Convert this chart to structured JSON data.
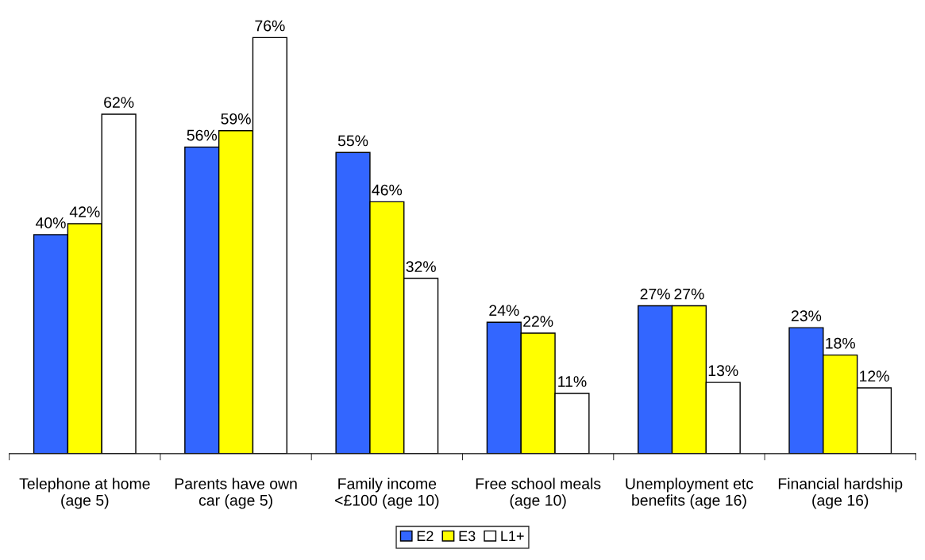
{
  "chart_data": {
    "type": "bar",
    "categories": [
      "Telephone at home (age 5)",
      "Parents have own car (age 5)",
      "Family income <£100 (age 10)",
      "Free school meals (age 10)",
      "Unemployment etc benefits (age 16)",
      "Financial hardship (age 16)"
    ],
    "series": [
      {
        "name": "E2",
        "color": "#3366ff",
        "values": [
          40,
          56,
          55,
          24,
          27,
          23
        ],
        "value_labels": [
          "40%",
          "56%",
          "55%",
          "24%",
          "27%",
          "23%"
        ]
      },
      {
        "name": "E3",
        "color": "#ffff00",
        "values": [
          42,
          59,
          46,
          22,
          27,
          18
        ],
        "value_labels": [
          "42%",
          "59%",
          "46%",
          "22%",
          "27%",
          "18%"
        ]
      },
      {
        "name": "L1+",
        "color": "#ffffff",
        "values": [
          62,
          76,
          32,
          11,
          13,
          12
        ],
        "value_labels": [
          "62%",
          "76%",
          "32%",
          "11%",
          "13%",
          "12%"
        ]
      }
    ],
    "legend": "bottom",
    "grid": false
  }
}
